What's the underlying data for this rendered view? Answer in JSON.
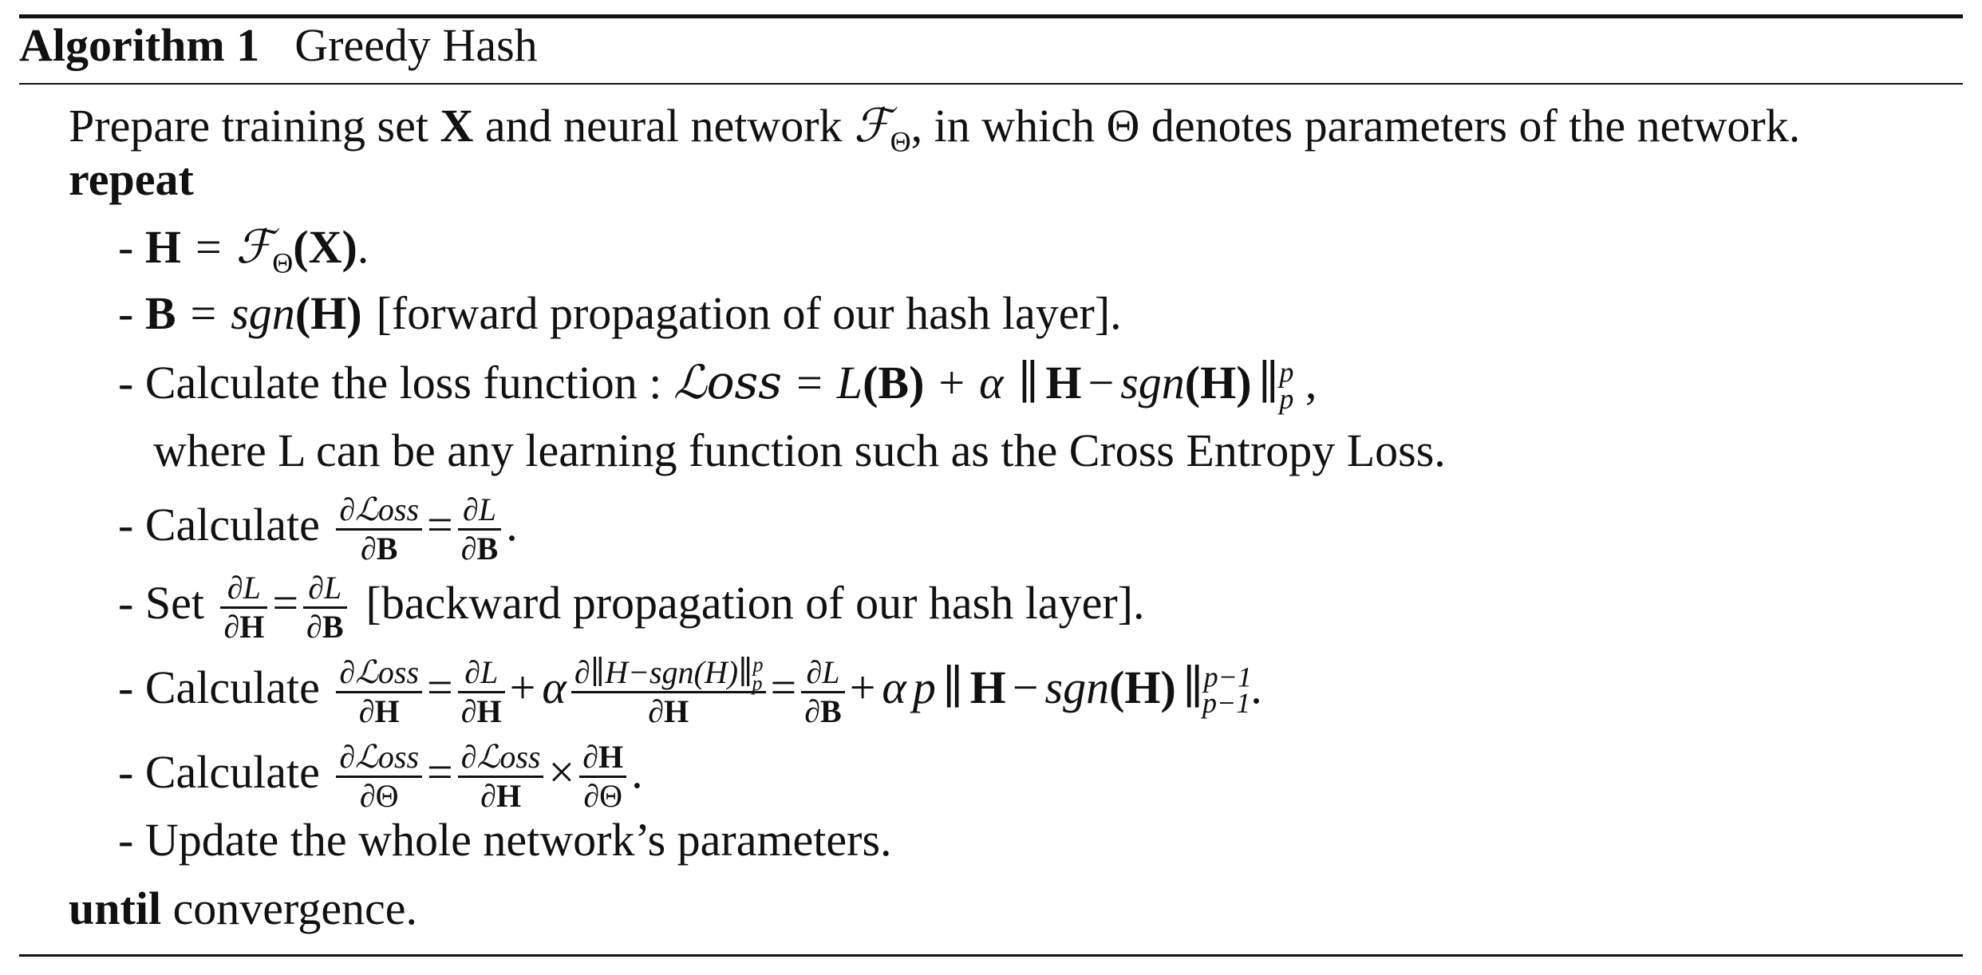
{
  "caption": {
    "label": "Algorithm 1",
    "title": "Greedy Hash"
  },
  "lines": {
    "prepare": {
      "t1": "Prepare training set ",
      "X": "X",
      "t2": " and neural network ",
      "F": "ℱ",
      "Fsub": "Θ",
      "t3": ", in which Θ denotes parameters of the network."
    },
    "repeat_kw": "repeat",
    "s1": {
      "dash": "- ",
      "H": "H",
      "eq": "=",
      "F": "ℱ",
      "Fsub": "Θ",
      "arg": "(X)",
      "end": "."
    },
    "s2": {
      "dash": "- ",
      "B": "B",
      "eq": "=",
      "sgn": "sgn",
      "arg": "(H)",
      "comment": "[forward propagation of our hash layer]."
    },
    "s3": {
      "text": "- Calculate the loss function : ",
      "Loss": "ℒoss",
      "eq": "=",
      "L": "L",
      "argB": "(B)",
      "plus": "+",
      "alpha": "α",
      "norm_open": "∥",
      "H": "H",
      "minus": "−",
      "sgn": "sgn",
      "argH": "(H)",
      "norm_close": "∥",
      "sup": "p",
      "sub": "p",
      "end": " ,"
    },
    "s3b": "where L can be any learning function such as the Cross Entropy Loss.",
    "s4": {
      "text": "- Calculate ",
      "f1_num": "∂ℒoss",
      "f1_den": "∂B",
      "eq": "=",
      "f2_num": "∂L",
      "f2_den": "∂B",
      "end": "."
    },
    "s5": {
      "text": "- Set ",
      "f1_num": "∂L",
      "f1_den": "∂H",
      "eq": "=",
      "f2_num": "∂L",
      "f2_den": "∂B",
      "comment": "[backward propagation of our hash layer]."
    },
    "s6": {
      "text": "- Calculate ",
      "f1_num": "∂ℒoss",
      "f1_den": "∂H",
      "eq1": "=",
      "f2_num": "∂L",
      "f2_den": "∂H",
      "plus1": "+",
      "alpha1": "α",
      "f3_num": "∂∥H−sgn(H)∥",
      "f3_sup": "p",
      "f3_sub": "p",
      "f3_den": "∂H",
      "eq2": "=",
      "f4_num": "∂L",
      "f4_den": "∂B",
      "plus2": "+",
      "alpha2": "α",
      "p": "p",
      "norm_open": "∥",
      "H": "H",
      "minus": "−",
      "sgn": "sgn",
      "argH": "(H)",
      "norm_close": "∥",
      "sup": "p−1",
      "sub": "p−1",
      "end": "."
    },
    "s7": {
      "text": "- Calculate ",
      "f1_num": "∂ℒoss",
      "f1_den": "∂Θ",
      "eq": "=",
      "f2_num": "∂ℒoss",
      "f2_den": "∂H",
      "times": "×",
      "f3_num": "∂H",
      "f3_den": "∂Θ",
      "end": "."
    },
    "s8": "- Update the whole network’s parameters.",
    "until_kw": "until",
    "until_text": " convergence."
  }
}
